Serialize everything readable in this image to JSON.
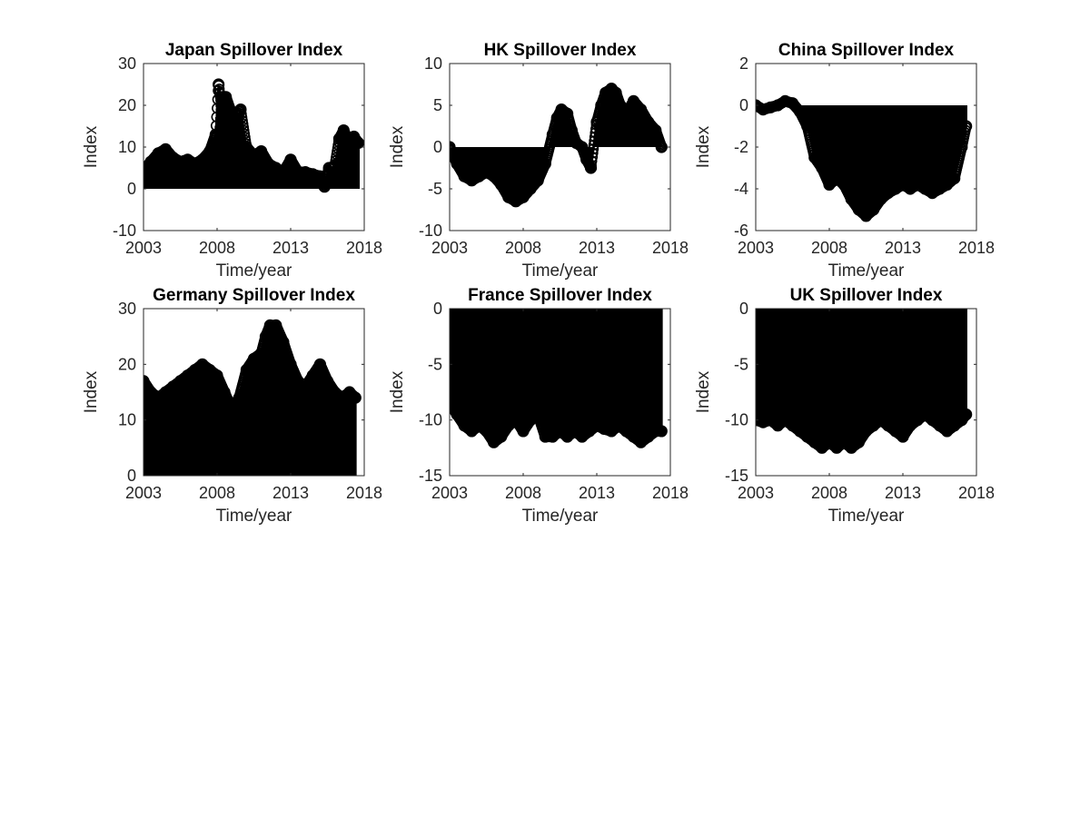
{
  "figure": {
    "title": "",
    "background": "#ffffff",
    "mark_color": "#000000"
  },
  "chart_data": [
    {
      "type": "bar",
      "title": "Japan Spillover Index",
      "xlabel": "Time/year",
      "ylabel": "Index",
      "xlim": [
        2003,
        2018
      ],
      "ylim": [
        -10,
        30
      ],
      "xticks": [
        "2003",
        "2008",
        "2013",
        "2018"
      ],
      "yticks": [
        "-10",
        "0",
        "10",
        "20",
        "30"
      ],
      "baseline": 0,
      "marker": "circle",
      "grid": false,
      "legend": "none",
      "x": [
        2003.0,
        2003.5,
        2004.0,
        2004.5,
        2005.0,
        2005.5,
        2006.0,
        2006.5,
        2007.0,
        2007.5,
        2007.9,
        2008.1,
        2008.3,
        2008.6,
        2009.0,
        2009.3,
        2009.6,
        2010.0,
        2010.5,
        2011.0,
        2011.5,
        2012.0,
        2012.5,
        2013.0,
        2013.5,
        2014.0,
        2014.5,
        2015.0,
        2015.3,
        2015.6,
        2016.0,
        2016.3,
        2016.6,
        2017.0,
        2017.3,
        2017.6
      ],
      "y": [
        4.5,
        6.5,
        8.5,
        9.5,
        7.5,
        6.5,
        7.0,
        6.0,
        7.0,
        9.0,
        13.0,
        25.0,
        20.0,
        22.0,
        18.0,
        16.0,
        19.0,
        10.0,
        8.0,
        9.0,
        6.0,
        5.0,
        4.0,
        7.0,
        4.0,
        4.0,
        3.5,
        3.0,
        0.5,
        5.0,
        5.5,
        12.0,
        14.0,
        11.0,
        12.5,
        11.0
      ]
    },
    {
      "type": "bar",
      "title": "HK Spillover Index",
      "xlabel": "Time/year",
      "ylabel": "Index",
      "xlim": [
        2003,
        2018
      ],
      "ylim": [
        -10,
        10
      ],
      "xticks": [
        "2003",
        "2008",
        "2013",
        "2018"
      ],
      "yticks": [
        "-10",
        "-5",
        "0",
        "5",
        "10"
      ],
      "baseline": 0,
      "marker": "circle",
      "grid": false,
      "legend": "none",
      "x": [
        2003.0,
        2003.5,
        2004.0,
        2004.5,
        2005.0,
        2005.5,
        2006.0,
        2006.5,
        2007.0,
        2007.5,
        2008.0,
        2008.5,
        2009.0,
        2009.5,
        2010.0,
        2010.3,
        2010.6,
        2011.0,
        2011.3,
        2011.6,
        2012.0,
        2012.3,
        2012.6,
        2013.0,
        2013.3,
        2013.6,
        2014.0,
        2014.3,
        2014.6,
        2015.0,
        2015.5,
        2016.0,
        2016.5,
        2017.0,
        2017.4
      ],
      "y": [
        0.0,
        -2.0,
        -3.5,
        -4.0,
        -3.5,
        -3.0,
        -3.5,
        -4.5,
        -6.0,
        -6.5,
        -6.0,
        -5.0,
        -4.0,
        -2.0,
        1.5,
        3.5,
        4.5,
        4.0,
        2.0,
        0.5,
        0.0,
        -1.5,
        -2.5,
        3.0,
        5.0,
        6.5,
        7.0,
        6.5,
        5.0,
        4.0,
        5.5,
        4.5,
        3.0,
        2.0,
        0.0
      ]
    },
    {
      "type": "bar",
      "title": "China Spillover Index",
      "xlabel": "Time/year",
      "ylabel": "Index",
      "xlim": [
        2003,
        2018
      ],
      "ylim": [
        -6,
        2
      ],
      "xticks": [
        "2003",
        "2008",
        "2013",
        "2018"
      ],
      "yticks": [
        "-6",
        "-4",
        "-2",
        "0",
        "2"
      ],
      "baseline": 0,
      "marker": "circle",
      "grid": false,
      "legend": "none",
      "x": [
        2003.0,
        2003.5,
        2004.0,
        2004.5,
        2005.0,
        2005.5,
        2006.0,
        2006.5,
        2007.0,
        2007.5,
        2008.0,
        2008.5,
        2009.0,
        2009.5,
        2010.0,
        2010.5,
        2011.0,
        2011.5,
        2012.0,
        2012.5,
        2013.0,
        2013.5,
        2014.0,
        2014.5,
        2015.0,
        2015.5,
        2016.0,
        2016.5,
        2017.0,
        2017.3
      ],
      "y": [
        0.0,
        -0.2,
        -0.1,
        0.0,
        0.2,
        0.1,
        -0.3,
        -1.0,
        -2.5,
        -3.0,
        -3.8,
        -3.5,
        -3.8,
        -4.5,
        -5.0,
        -5.3,
        -5.0,
        -4.5,
        -4.2,
        -4.0,
        -3.8,
        -4.0,
        -3.8,
        -4.0,
        -4.2,
        -4.0,
        -3.8,
        -3.5,
        -2.0,
        -1.0
      ]
    },
    {
      "type": "bar",
      "title": "Germany Spillover Index",
      "xlabel": "Time/year",
      "ylabel": "Index",
      "xlim": [
        2003,
        2018
      ],
      "ylim": [
        0,
        30
      ],
      "xticks": [
        "2003",
        "2008",
        "2013",
        "2018"
      ],
      "yticks": [
        "0",
        "10",
        "20",
        "30"
      ],
      "baseline": 0,
      "marker": "circle",
      "grid": false,
      "legend": "none",
      "x": [
        2003.0,
        2003.5,
        2004.0,
        2004.5,
        2005.0,
        2005.5,
        2006.0,
        2006.5,
        2007.0,
        2007.5,
        2008.0,
        2008.5,
        2009.0,
        2009.5,
        2010.0,
        2010.5,
        2011.0,
        2011.3,
        2011.6,
        2012.0,
        2012.5,
        2013.0,
        2013.5,
        2014.0,
        2014.5,
        2015.0,
        2015.5,
        2016.0,
        2016.5,
        2017.0,
        2017.4
      ],
      "y": [
        17.0,
        15.0,
        14.0,
        15.0,
        16.0,
        17.0,
        18.0,
        19.0,
        20.0,
        19.0,
        18.0,
        15.0,
        12.0,
        14.0,
        19.0,
        21.0,
        22.0,
        25.0,
        27.0,
        27.0,
        24.0,
        20.0,
        17.0,
        16.0,
        18.0,
        20.0,
        17.0,
        15.0,
        14.0,
        15.0,
        14.0
      ]
    },
    {
      "type": "bar",
      "title": "France Spillover Index",
      "xlabel": "Time/year",
      "ylabel": "Index",
      "xlim": [
        2003,
        2018
      ],
      "ylim": [
        -15,
        0
      ],
      "xticks": [
        "2003",
        "2008",
        "2013",
        "2018"
      ],
      "yticks": [
        "-15",
        "-10",
        "-5",
        "0"
      ],
      "baseline": 0,
      "marker": "circle",
      "grid": false,
      "legend": "none",
      "x": [
        2003.0,
        2003.5,
        2004.0,
        2004.5,
        2005.0,
        2005.5,
        2006.0,
        2006.5,
        2007.0,
        2007.5,
        2008.0,
        2008.5,
        2009.0,
        2009.5,
        2010.0,
        2010.5,
        2011.0,
        2011.5,
        2012.0,
        2012.5,
        2013.0,
        2013.5,
        2014.0,
        2014.5,
        2015.0,
        2015.5,
        2016.0,
        2016.5,
        2017.0,
        2017.4
      ],
      "y": [
        -8.5,
        -9.5,
        -10.5,
        -11.0,
        -10.5,
        -11.0,
        -12.0,
        -11.5,
        -10.5,
        -10.0,
        -11.0,
        -10.0,
        -9.5,
        -11.5,
        -11.5,
        -11.0,
        -11.5,
        -11.0,
        -11.5,
        -11.0,
        -10.5,
        -10.8,
        -11.0,
        -10.5,
        -11.0,
        -11.5,
        -12.0,
        -11.5,
        -11.0,
        -11.0
      ]
    },
    {
      "type": "bar",
      "title": "UK Spillover Index",
      "xlabel": "Time/year",
      "ylabel": "Index",
      "xlim": [
        2003,
        2018
      ],
      "ylim": [
        -15,
        0
      ],
      "xticks": [
        "2003",
        "2008",
        "2013",
        "2018"
      ],
      "yticks": [
        "-15",
        "-10",
        "-5",
        "0"
      ],
      "baseline": 0,
      "marker": "circle",
      "grid": false,
      "legend": "none",
      "x": [
        2003.0,
        2003.5,
        2004.0,
        2004.5,
        2005.0,
        2005.5,
        2006.0,
        2006.5,
        2007.0,
        2007.5,
        2008.0,
        2008.5,
        2009.0,
        2009.5,
        2010.0,
        2010.5,
        2011.0,
        2011.5,
        2012.0,
        2012.5,
        2013.0,
        2013.5,
        2014.0,
        2014.5,
        2015.0,
        2015.5,
        2016.0,
        2016.5,
        2017.0,
        2017.3
      ],
      "y": [
        -10.0,
        -10.2,
        -10.0,
        -10.5,
        -10.0,
        -10.5,
        -11.0,
        -11.5,
        -12.0,
        -12.5,
        -12.0,
        -12.5,
        -12.0,
        -12.5,
        -12.0,
        -11.0,
        -10.5,
        -10.0,
        -10.5,
        -11.0,
        -11.5,
        -10.5,
        -10.0,
        -9.5,
        -10.0,
        -10.5,
        -11.0,
        -10.5,
        -10.0,
        -9.5
      ]
    }
  ]
}
